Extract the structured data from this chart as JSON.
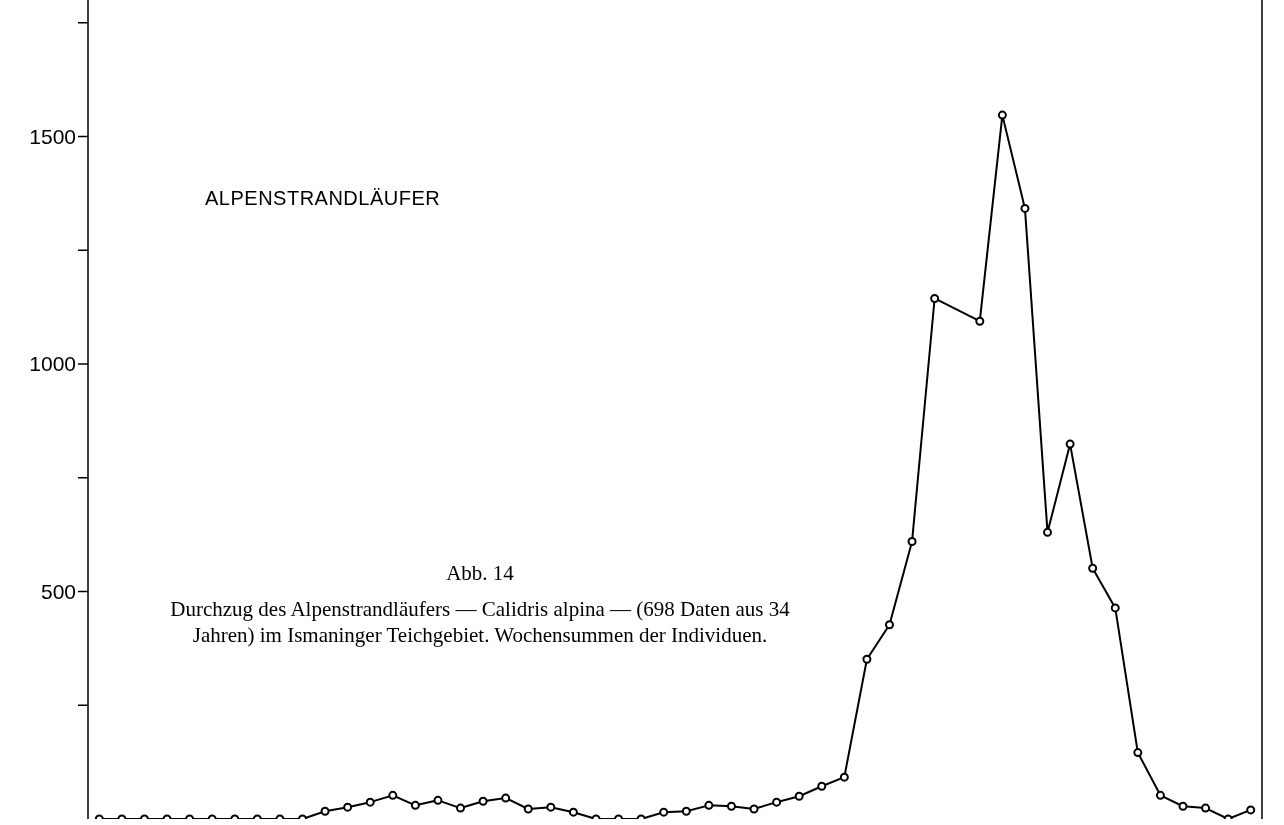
{
  "chart_data": {
    "type": "line",
    "title": "ALPENSTRANDLÄUFER",
    "annotations": [
      "Abb. 14",
      "Durchzug des Alpenstrandläufers — Calidris alpina — (698 Daten aus 34 Jahren) im Ismaninger Teichgebiet. Wochensummen der Individuen."
    ],
    "categories": [
      null,
      null,
      null,
      null,
      null,
      null,
      null,
      null,
      null,
      null,
      null,
      null,
      null,
      null,
      null,
      null,
      null,
      null,
      null,
      null,
      null,
      null,
      null,
      null,
      null,
      null,
      null,
      null,
      null,
      null,
      null,
      null,
      null,
      null,
      null,
      null,
      null,
      null,
      null,
      null,
      null,
      null,
      null,
      null,
      null,
      null,
      null,
      null,
      null,
      null,
      null,
      null
    ],
    "series": [
      {
        "color": "#000000",
        "values": [
          0,
          0,
          0,
          0,
          0,
          0,
          0,
          0,
          0,
          0,
          17,
          26,
          37,
          52,
          30,
          41,
          24,
          39,
          46,
          22,
          26,
          15,
          0,
          0,
          0,
          15,
          17,
          30,
          28,
          22,
          37,
          50,
          72,
          92,
          351,
          427,
          610,
          1144,
          null,
          1094,
          1547,
          1342,
          630,
          824,
          551,
          464,
          146,
          52,
          28,
          24,
          0,
          20
        ]
      }
    ],
    "ylim": [
      0,
      1800
    ],
    "yticks": [
      {
        "value": 250,
        "label": null
      },
      500,
      {
        "value": 750,
        "label": null
      },
      1000,
      {
        "value": 1250,
        "label": null
      },
      1500,
      {
        "value": 1750,
        "label": null
      }
    ],
    "tick_labels": "y",
    "grid": false,
    "legend": false,
    "marker": "circle",
    "line_style": "solid"
  }
}
